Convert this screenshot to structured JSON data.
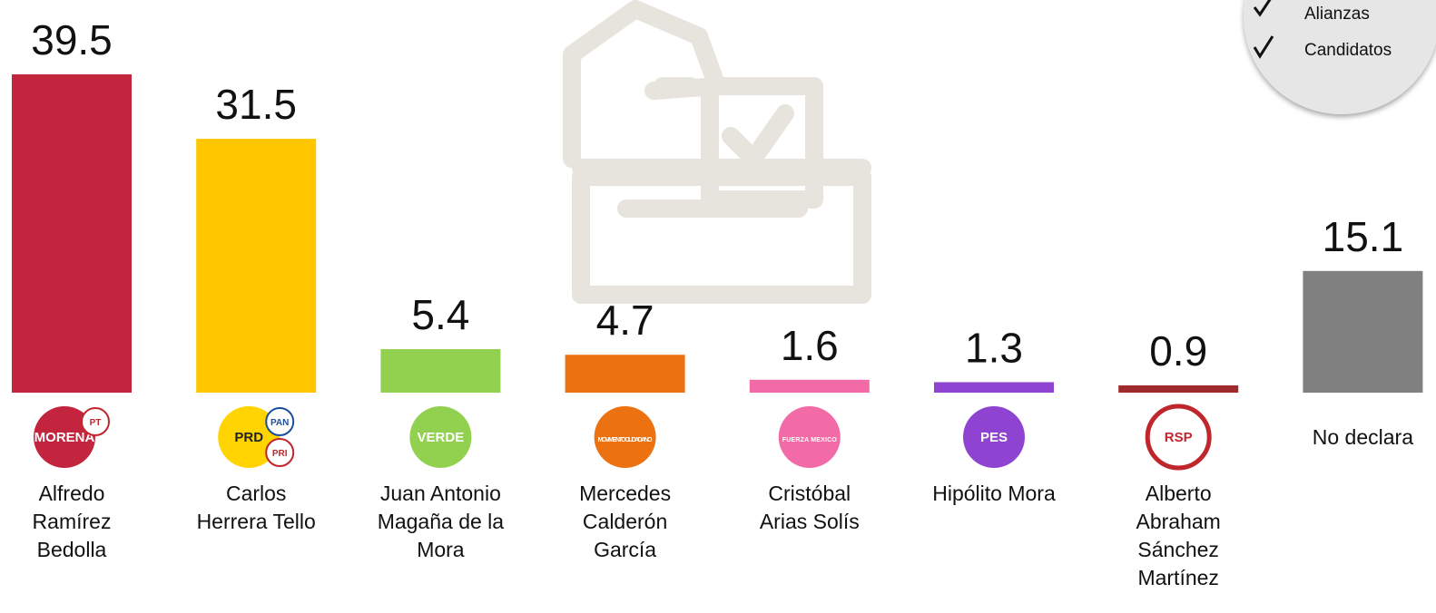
{
  "chart_data": {
    "type": "bar",
    "categories": [
      "Alfredo Ramírez Bedolla",
      "Carlos Herrera Tello",
      "Juan Antonio Magaña de la Mora",
      "Mercedes Calderón García",
      "Cristóbal Arias Solís",
      "Hipólito Mora",
      "Alberto Abraham Sánchez Martínez",
      "No declara"
    ],
    "values": [
      39.5,
      31.5,
      5.4,
      4.7,
      1.6,
      1.3,
      0.9,
      15.1
    ],
    "colors": [
      "#c3253f",
      "#ffc600",
      "#92d050",
      "#ec7211",
      "#f26aa6",
      "#8e44d1",
      "#9e2a2b",
      "#808080"
    ],
    "logos": [
      [
        "MORENA",
        "PT"
      ],
      [
        "PRD",
        "PAN",
        "PRI"
      ],
      [
        "VERDE"
      ],
      [
        "MOVIMIENTO CIUDADANO"
      ],
      [
        "FUERZA MEXICO"
      ],
      [
        "PES"
      ],
      [
        "RSP"
      ],
      null
    ],
    "notes": [
      "Alianzas",
      "Candidatos"
    ]
  }
}
